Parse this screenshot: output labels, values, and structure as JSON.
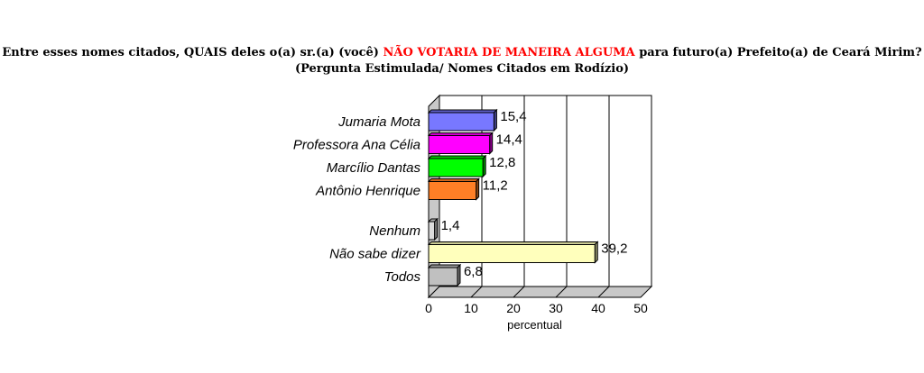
{
  "title": {
    "part1": "Entre esses nomes citados, QUAIS deles o(a) sr.(a) (você)",
    "highlight": "NÃO VOTARIA DE MANEIRA ALGUMA",
    "part2": "para futuro(a) Prefeito(a) de Ceará Mirim?",
    "line2": "(Pergunta Estimulada/ Nomes Citados em Rodízio)",
    "highlight_color": "#ff0000"
  },
  "chart_data": {
    "type": "bar",
    "orientation": "horizontal",
    "three_d": true,
    "xlabel": "percentual",
    "xlim": [
      0,
      50
    ],
    "xticks": [
      "0",
      "10",
      "20",
      "30",
      "40",
      "50"
    ],
    "grid": true,
    "categories": [
      "Jumaria Mota",
      "Professora Ana Célia",
      "Marcílio Dantas",
      "Antônio Henrique",
      "Nenhum",
      "Não sabe dizer",
      "Todos"
    ],
    "values": [
      15.4,
      14.4,
      12.8,
      11.2,
      1.4,
      39.2,
      6.8
    ],
    "value_labels": [
      "15,4",
      "14,4",
      "12,8",
      "11,2",
      "1,4",
      "39,2",
      "6,8"
    ],
    "colors": [
      "#7878ff",
      "#ff00ff",
      "#00ff00",
      "#ff7f26",
      "#dcdcdc",
      "#ffffbc",
      "#c0c0c0"
    ]
  }
}
